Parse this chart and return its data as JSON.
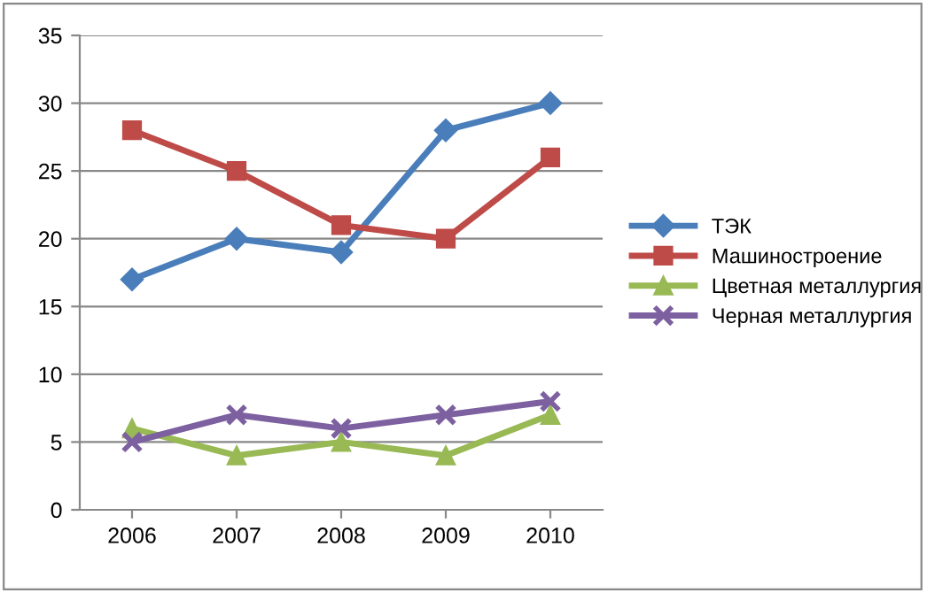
{
  "chart_data": {
    "type": "line",
    "categories": [
      "2006",
      "2007",
      "2008",
      "2009",
      "2010"
    ],
    "series": [
      {
        "name": "ТЭК",
        "color": "#4a7ebb",
        "marker": "diamond",
        "values": [
          17,
          20,
          19,
          28,
          30
        ]
      },
      {
        "name": "Машиностроение",
        "color": "#be4b48",
        "marker": "square",
        "values": [
          28,
          25,
          21,
          20,
          26
        ]
      },
      {
        "name": "Цветная металлургия",
        "color": "#98b954",
        "marker": "triangle",
        "values": [
          6,
          4,
          5,
          4,
          7
        ]
      },
      {
        "name": "Черная металлургия",
        "color": "#7d60a0",
        "marker": "cross",
        "values": [
          5,
          7,
          6,
          7,
          8
        ]
      }
    ],
    "ylim": [
      0,
      35
    ],
    "yticks": [
      0,
      5,
      10,
      15,
      20,
      25,
      30,
      35
    ],
    "grid": "y",
    "legend": "right",
    "line_style": "solid"
  }
}
